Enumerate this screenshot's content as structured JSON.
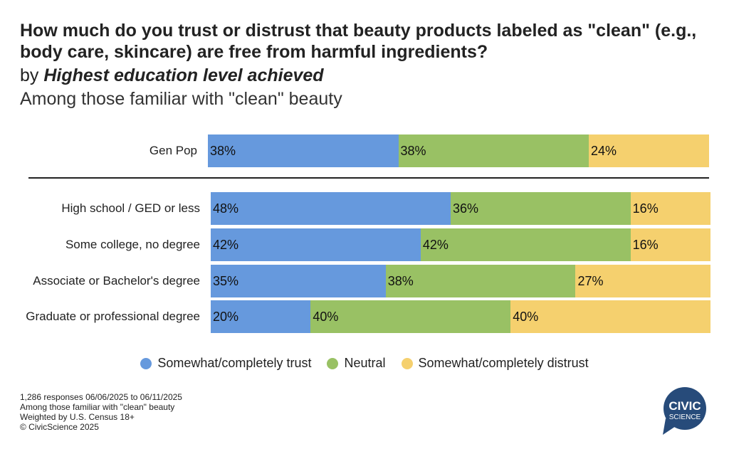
{
  "chart_data": {
    "type": "bar",
    "stacked": true,
    "orientation": "horizontal",
    "title": "How much do you trust or distrust that beauty products labeled as \"clean\" (e.g., body care, skincare) are free from harmful ingredients?",
    "by_prefix": "by ",
    "by_label": "Highest education level achieved",
    "subtitle": "Among those familiar with \"clean\" beauty",
    "categories": [
      "Gen Pop",
      "High school / GED or less",
      "Some college, no degree",
      "Associate or Bachelor's degree",
      "Graduate or professional degree"
    ],
    "series": [
      {
        "name": "Somewhat/completely trust",
        "color": "#6699dd",
        "values": [
          38,
          48,
          42,
          35,
          20
        ]
      },
      {
        "name": "Neutral",
        "color": "#99c164",
        "values": [
          38,
          36,
          42,
          38,
          40
        ]
      },
      {
        "name": "Somewhat/completely distrust",
        "color": "#f5d06e",
        "values": [
          24,
          16,
          16,
          27,
          40
        ]
      }
    ],
    "xlim": [
      0,
      100
    ],
    "legend": "bottom"
  },
  "footer": [
    "1,286 responses 06/06/2025 to 06/11/2025",
    "Among those familiar with \"clean\" beauty",
    "Weighted by U.S. Census 18+",
    "© CivicScience 2025"
  ],
  "logo": {
    "line1": "CIVIC",
    "line2": "SCIENCE",
    "color": "#274b7a"
  }
}
